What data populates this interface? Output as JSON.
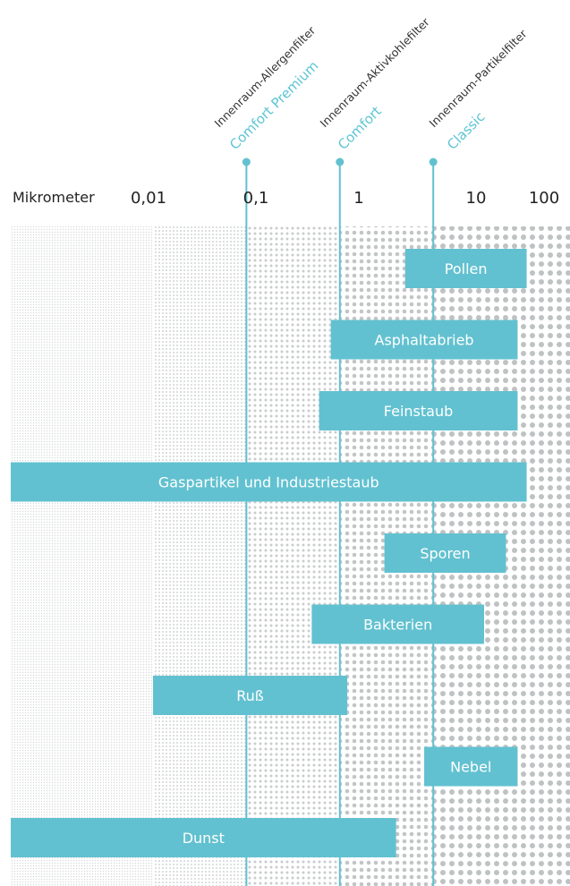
{
  "chart_data": {
    "type": "bar",
    "orientation": "horizontal-range",
    "x_scale": "log",
    "xlim": [
      0.0003,
      200
    ],
    "axis_unit_label": "Mikrometer",
    "ticks": [
      {
        "value": 0.01,
        "label": "0,01"
      },
      {
        "value": 0.1,
        "label": "0,1"
      },
      {
        "value": 1,
        "label": "1"
      },
      {
        "value": 10,
        "label": "10"
      },
      {
        "value": 100,
        "label": "100"
      }
    ],
    "filters": [
      {
        "name": "Innenraum-Allergenfilter",
        "variant": "Comfort Premium",
        "threshold": 0.1
      },
      {
        "name": "Innenraum-Aktivkohlefilter",
        "variant": "Comfort",
        "threshold": 1
      },
      {
        "name": "Innenraum-Partikelfilter",
        "variant": "Classic",
        "threshold": 10
      }
    ],
    "series": [
      {
        "label": "Pollen",
        "min": 5,
        "max": 100
      },
      {
        "label": "Asphaltabrieb",
        "min": 0.8,
        "max": 80
      },
      {
        "label": "Feinstaub",
        "min": 0.6,
        "max": 80
      },
      {
        "label": "Gaspartikel und Industriestaub",
        "min": 0.0003,
        "max": 100
      },
      {
        "label": "Sporen",
        "min": 3,
        "max": 60
      },
      {
        "label": "Bakterien",
        "min": 0.5,
        "max": 35
      },
      {
        "label": "Ruß",
        "min": 0.01,
        "max": 1.2
      },
      {
        "label": "Nebel",
        "min": 8,
        "max": 80
      },
      {
        "label": "Dunst",
        "min": 0.0003,
        "max": 4
      }
    ],
    "colors": {
      "bar": "#62c1d0",
      "filter_line": "#62c1d0",
      "variant_text": "#5bc4d3",
      "dots": "#c4c7c8"
    }
  }
}
